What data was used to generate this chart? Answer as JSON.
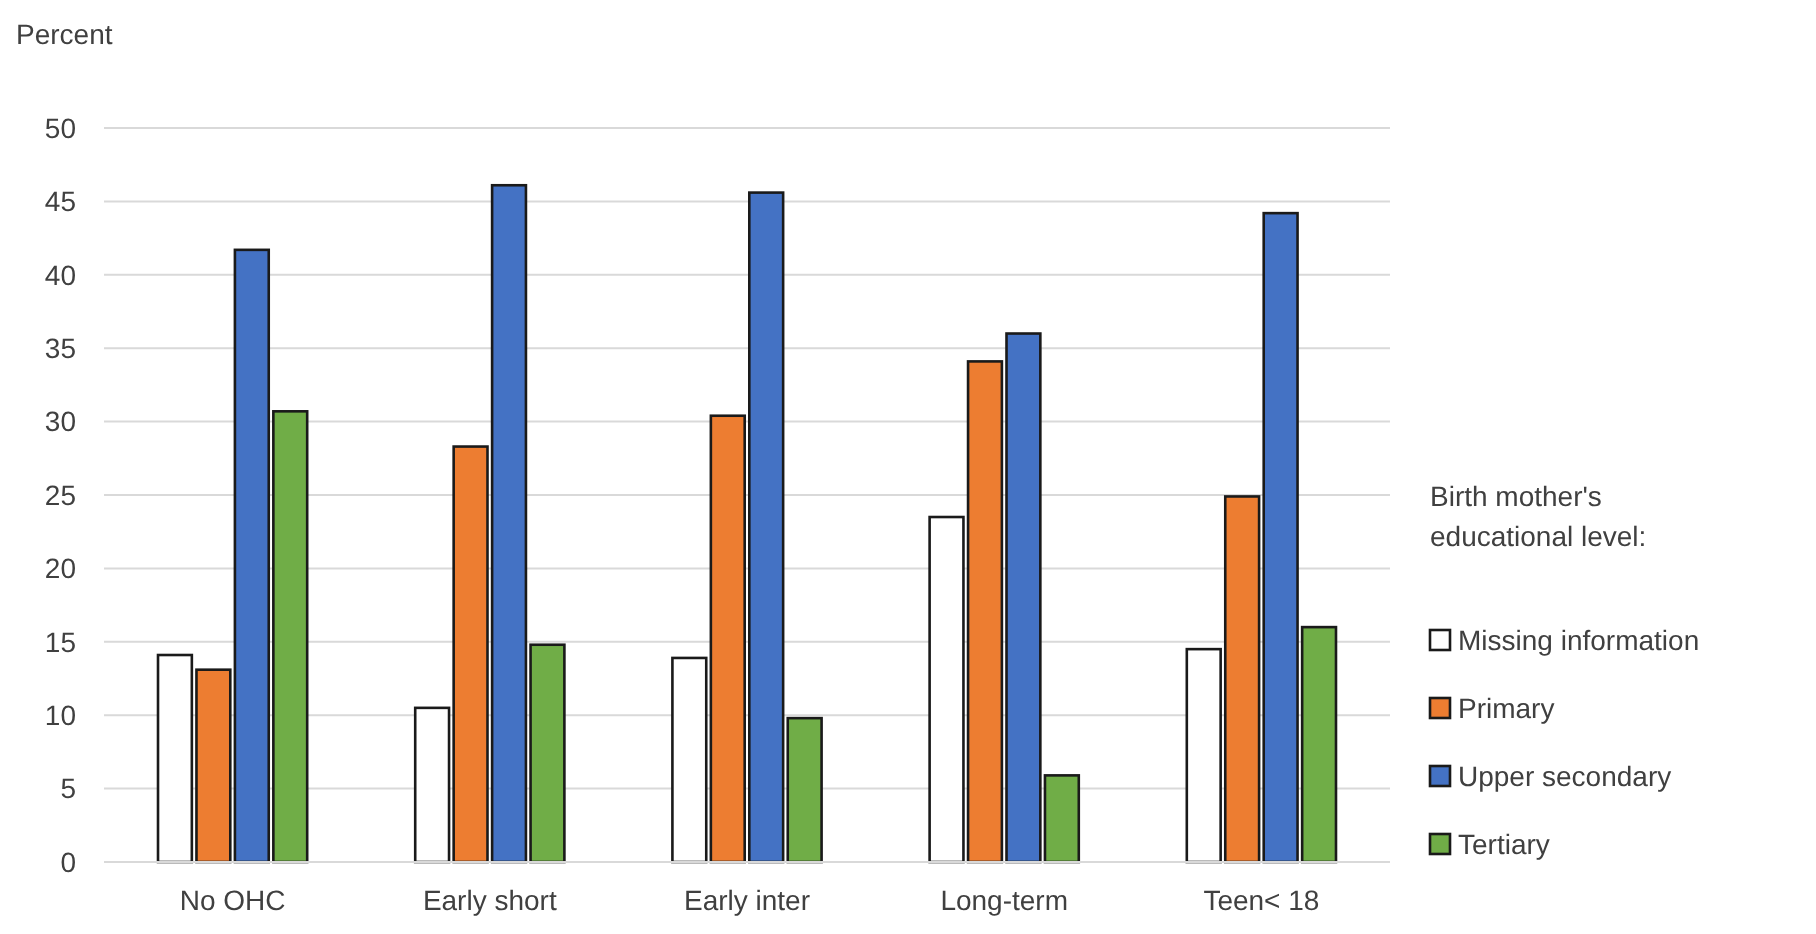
{
  "chart_data": {
    "type": "bar",
    "ylabel": "Percent",
    "legend_title": "Birth mother's educational level:",
    "categories": [
      "No OHC",
      "Early short",
      "Early inter",
      "Long-term",
      "Teen< 18"
    ],
    "series": [
      {
        "name": "Missing information",
        "color": "#ffffff",
        "values": [
          14.1,
          10.5,
          13.9,
          23.5,
          14.5
        ]
      },
      {
        "name": "Primary",
        "color": "#ed7d31",
        "values": [
          13.1,
          28.3,
          30.4,
          34.1,
          24.9
        ]
      },
      {
        "name": "Upper secondary",
        "color": "#4472c4",
        "values": [
          41.7,
          46.1,
          45.6,
          36.0,
          44.2
        ]
      },
      {
        "name": "Tertiary",
        "color": "#70ad47",
        "values": [
          30.7,
          14.8,
          9.8,
          5.9,
          16.0
        ]
      }
    ],
    "ylim": [
      0,
      50
    ],
    "yticks": [
      0,
      5,
      10,
      15,
      20,
      25,
      30,
      35,
      40,
      45,
      50
    ],
    "grid": "y",
    "legend": "right"
  }
}
